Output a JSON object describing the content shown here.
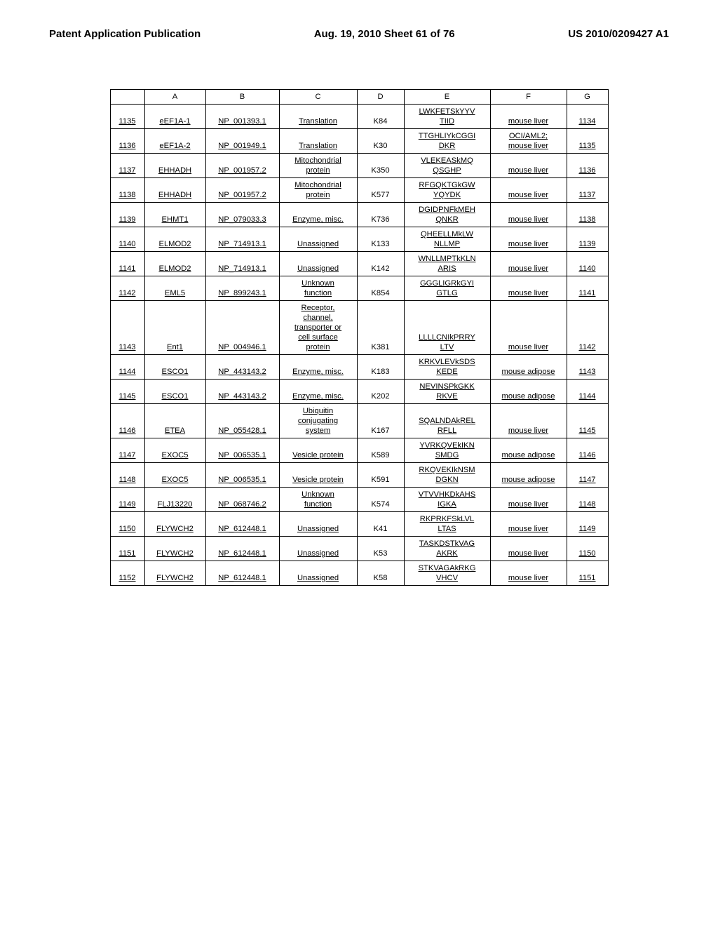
{
  "header": {
    "left": "Patent Application Publication",
    "center": "Aug. 19, 2010  Sheet 61 of 76",
    "right": "US 2010/0209427 A1"
  },
  "table": {
    "columns": [
      "",
      "A",
      "B",
      "C",
      "D",
      "E",
      "F",
      "G"
    ],
    "rows": [
      {
        "idx": "1135",
        "a": "eEF1A-1",
        "b": "NP_001393.1",
        "c": "Translation",
        "d": "K84",
        "e": "LWKFETSkYYV\nTIID",
        "f": "mouse liver",
        "g": "1134"
      },
      {
        "idx": "1136",
        "a": "eEF1A-2",
        "b": "NP_001949.1",
        "c": "Translation",
        "d": "K30",
        "e": "TTGHLIYkCGGI\nDKR",
        "f": "OCI/AML2;\nmouse liver",
        "g": "1135"
      },
      {
        "idx": "1137",
        "a": "EHHADH",
        "b": "NP_001957.2",
        "c": "Mitochondrial\nprotein",
        "d": "K350",
        "e": "VLEKEASkMQ\nQSGHP",
        "f": "mouse liver",
        "g": "1136"
      },
      {
        "idx": "1138",
        "a": "EHHADH",
        "b": "NP_001957.2",
        "c": "Mitochondrial\nprotein",
        "d": "K577",
        "e": "RFGQKTGkGW\nYQYDK",
        "f": "mouse liver",
        "g": "1137"
      },
      {
        "idx": "1139",
        "a": "EHMT1",
        "b": "NP_079033.3",
        "c": "Enzyme, misc.",
        "d": "K736",
        "e": "DGIDPNFkMEH\nQNKR",
        "f": "mouse liver",
        "g": "1138"
      },
      {
        "idx": "1140",
        "a": "ELMOD2",
        "b": "NP_714913.1",
        "c": "Unassigned",
        "d": "K133",
        "e": "QHEELLMkLW\nNLLMP",
        "f": "mouse liver",
        "g": "1139"
      },
      {
        "idx": "1141",
        "a": "ELMOD2",
        "b": "NP_714913.1",
        "c": "Unassigned",
        "d": "K142",
        "e": "WNLLMPTkKLN\nARIS",
        "f": "mouse liver",
        "g": "1140"
      },
      {
        "idx": "1142",
        "a": "EML5",
        "b": "NP_899243.1",
        "c": "Unknown\nfunction",
        "d": "K854",
        "e": "GGGLIGRkGYI\nGTLG",
        "f": "mouse liver",
        "g": "1141"
      },
      {
        "idx": "1143",
        "a": "Ent1",
        "b": "NP_004946.1",
        "c": "Receptor,\nchannel,\ntransporter or\ncell surface\nprotein",
        "d": "K381",
        "e": "LLLLCNIkPRRY\nLTV",
        "f": "mouse liver",
        "g": "1142"
      },
      {
        "idx": "1144",
        "a": "ESCO1",
        "b": "NP_443143.2",
        "c": "Enzyme, misc.",
        "d": "K183",
        "e": "KRKVLEVkSDS\nKEDE",
        "f": "mouse adipose",
        "g": "1143"
      },
      {
        "idx": "1145",
        "a": "ESCO1",
        "b": "NP_443143.2",
        "c": "Enzyme, misc.",
        "d": "K202",
        "e": "NEVINSPkGKK\nRKVE",
        "f": "mouse adipose",
        "g": "1144"
      },
      {
        "idx": "1146",
        "a": "ETEA",
        "b": "NP_055428.1",
        "c": "Ubiquitin\nconjugating\nsystem",
        "d": "K167",
        "e": "SQALNDAkREL\nRFLL",
        "f": "mouse liver",
        "g": "1145"
      },
      {
        "idx": "1147",
        "a": "EXOC5",
        "b": "NP_006535.1",
        "c": "Vesicle protein",
        "d": "K589",
        "e": "YVRKQVEkIKN\nSMDG",
        "f": "mouse adipose",
        "g": "1146"
      },
      {
        "idx": "1148",
        "a": "EXOC5",
        "b": "NP_006535.1",
        "c": "Vesicle protein",
        "d": "K591",
        "e": "RKQVEKIkNSM\nDGKN",
        "f": "mouse adipose",
        "g": "1147"
      },
      {
        "idx": "1149",
        "a": "FLJ13220",
        "b": "NP_068746.2",
        "c": "Unknown\nfunction",
        "d": "K574",
        "e": "VTVVHKDkAHS\nIGKA",
        "f": "mouse liver",
        "g": "1148"
      },
      {
        "idx": "1150",
        "a": "FLYWCH2",
        "b": "NP_612448.1",
        "c": "Unassigned",
        "d": "K41",
        "e": "RKPRKFSkLVL\nLTAS",
        "f": "mouse liver",
        "g": "1149"
      },
      {
        "idx": "1151",
        "a": "FLYWCH2",
        "b": "NP_612448.1",
        "c": "Unassigned",
        "d": "K53",
        "e": "TASKDSTkVAG\nAKRK",
        "f": "mouse liver",
        "g": "1150"
      },
      {
        "idx": "1152",
        "a": "FLYWCH2",
        "b": "NP_612448.1",
        "c": "Unassigned",
        "d": "K58",
        "e": "STKVAGAkRKG\nVHCV",
        "f": "mouse liver",
        "g": "1151"
      }
    ]
  }
}
